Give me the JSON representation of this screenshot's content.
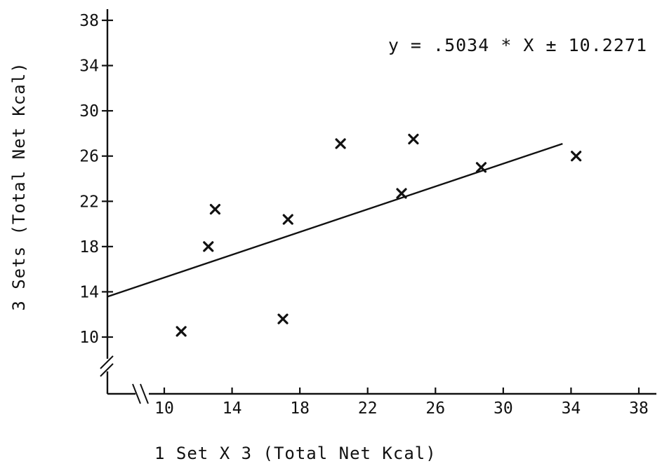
{
  "chart_data": {
    "type": "scatter",
    "title": "",
    "xlabel": "1 Set X 3 (Total Net Kcal)",
    "ylabel": "3 Sets (Total Net Kcal)",
    "xlim": [
      10,
      38
    ],
    "ylim": [
      10,
      38
    ],
    "x_ticks": [
      "10",
      "14",
      "18",
      "22",
      "26",
      "30",
      "34",
      "38"
    ],
    "y_ticks": [
      "10",
      "14",
      "18",
      "22",
      "26",
      "30",
      "34",
      "38"
    ],
    "axis_breaks": true,
    "grid": false,
    "annotation": "y = .5034 * X ± 10.2271",
    "regression": {
      "slope": 0.5034,
      "intercept": 10.2271,
      "x_end": 33.5
    },
    "points": [
      {
        "x": 11.0,
        "y": 10.5
      },
      {
        "x": 12.6,
        "y": 18.0
      },
      {
        "x": 13.0,
        "y": 21.3
      },
      {
        "x": 17.0,
        "y": 11.6
      },
      {
        "x": 17.3,
        "y": 20.4
      },
      {
        "x": 20.4,
        "y": 27.1
      },
      {
        "x": 24.0,
        "y": 22.7
      },
      {
        "x": 24.7,
        "y": 27.5
      },
      {
        "x": 28.7,
        "y": 25.0
      },
      {
        "x": 34.3,
        "y": 26.0
      }
    ],
    "marker": "x",
    "colors": {
      "ink": "#111111",
      "background": "#ffffff"
    }
  }
}
